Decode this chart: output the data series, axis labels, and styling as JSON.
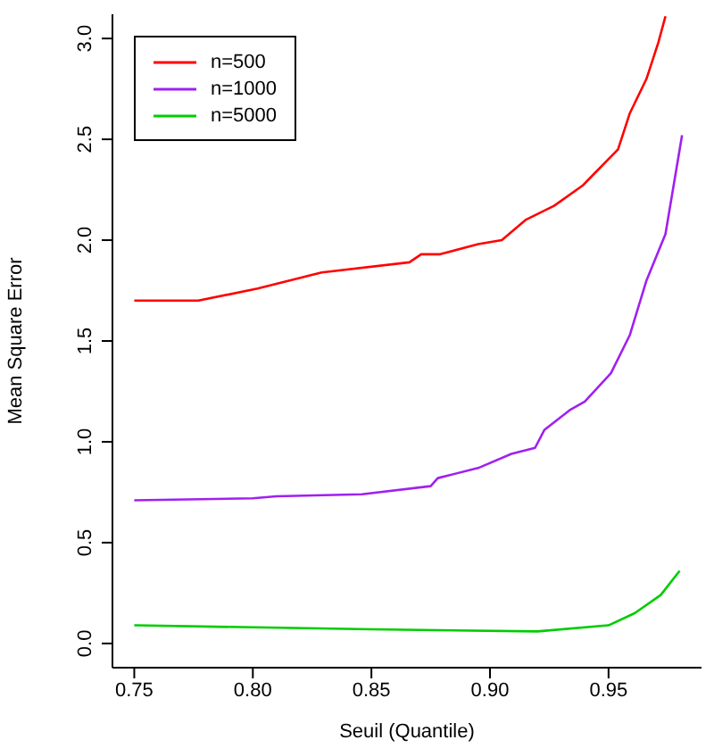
{
  "chart_data": {
    "type": "line",
    "xlabel": "Seuil (Quantile)",
    "ylabel": "Mean Square Error",
    "xlim": [
      0.7408,
      0.9892
    ],
    "xticks": [
      0.75,
      {
        "value": 0.8,
        "label": "0.80"
      },
      0.85,
      {
        "value": 0.9,
        "label": "0.90"
      },
      0.95
    ],
    "ylim": [
      -0.12,
      3.12
    ],
    "yticks": [
      {
        "value": 0,
        "label": "0.0"
      },
      {
        "value": 0.5,
        "label": "0.5"
      },
      {
        "value": 1,
        "label": "1.0"
      },
      {
        "value": 1.5,
        "label": "1.5"
      },
      {
        "value": 2,
        "label": "2.0"
      },
      {
        "value": 2.5,
        "label": "2.5"
      },
      {
        "value": 3,
        "label": "3.0"
      }
    ],
    "legend": "top left",
    "marker": "none",
    "line_style": "solid",
    "series": [
      {
        "name": "n=500",
        "color": "#ff0000",
        "x": [
          0.75,
          0.777,
          0.802,
          0.829,
          0.866,
          0.871,
          0.879,
          0.895,
          0.905,
          0.915,
          0.927,
          0.939,
          0.944,
          0.954,
          0.959,
          0.966,
          0.971,
          0.974
        ],
        "values": [
          1.7,
          1.7,
          1.76,
          1.84,
          1.89,
          1.93,
          1.93,
          1.98,
          2.0,
          2.1,
          2.17,
          2.27,
          2.33,
          2.45,
          2.63,
          2.8,
          2.98,
          3.11
        ]
      },
      {
        "name": "n=1000",
        "color": "#a020f0",
        "x": [
          0.75,
          0.8,
          0.81,
          0.846,
          0.875,
          0.878,
          0.895,
          0.909,
          0.919,
          0.923,
          0.934,
          0.94,
          0.951,
          0.959,
          0.966,
          0.974,
          0.981
        ],
        "values": [
          0.71,
          0.72,
          0.73,
          0.74,
          0.78,
          0.82,
          0.87,
          0.94,
          0.97,
          1.06,
          1.16,
          1.2,
          1.34,
          1.53,
          1.8,
          2.03,
          2.52
        ]
      },
      {
        "name": "n=5000",
        "color": "#00cd00",
        "x": [
          0.75,
          0.8,
          0.85,
          0.92,
          0.95,
          0.961,
          0.972,
          0.98
        ],
        "values": [
          0.09,
          0.08,
          0.07,
          0.06,
          0.09,
          0.15,
          0.24,
          0.36
        ]
      }
    ]
  }
}
